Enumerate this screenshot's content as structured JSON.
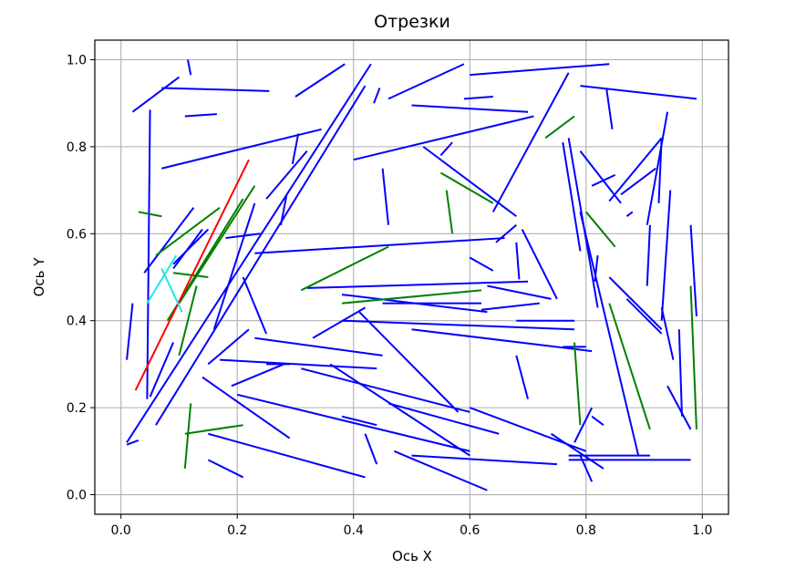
{
  "chart_data": {
    "type": "line",
    "title": "Отрезки",
    "xlabel": "Ось X",
    "ylabel": "Ось Y",
    "xlim": [
      -0.045,
      1.045
    ],
    "ylim": [
      -0.045,
      1.045
    ],
    "xticks": [
      "0.0",
      "0.2",
      "0.4",
      "0.6",
      "0.8",
      "1.0"
    ],
    "yticks": [
      "0.0",
      "0.2",
      "0.4",
      "0.6",
      "0.8",
      "1.0"
    ],
    "grid": true,
    "colors": {
      "blue": "#0000ff",
      "green": "#008000",
      "red": "#ff0000",
      "cyan": "#22e5e5"
    },
    "series": [
      {
        "color": "#0000ff",
        "segments": [
          [
            0.02,
            0.88,
            0.1,
            0.96
          ],
          [
            0.115,
            1.0,
            0.12,
            0.965
          ],
          [
            0.07,
            0.935,
            0.255,
            0.928
          ],
          [
            0.3,
            0.915,
            0.385,
            0.99
          ],
          [
            0.46,
            0.91,
            0.59,
            0.99
          ],
          [
            0.6,
            0.965,
            0.84,
            0.99
          ],
          [
            0.79,
            0.94,
            0.99,
            0.91
          ],
          [
            0.835,
            0.935,
            0.845,
            0.84
          ],
          [
            0.435,
            0.9,
            0.445,
            0.935
          ],
          [
            0.5,
            0.895,
            0.7,
            0.88
          ],
          [
            0.59,
            0.91,
            0.64,
            0.915
          ],
          [
            0.11,
            0.87,
            0.165,
            0.875
          ],
          [
            0.05,
            0.885,
            0.045,
            0.22
          ],
          [
            0.02,
            0.44,
            0.01,
            0.31
          ],
          [
            0.01,
            0.115,
            0.03,
            0.125
          ],
          [
            0.01,
            0.12,
            0.43,
            0.99
          ],
          [
            0.06,
            0.16,
            0.42,
            0.94
          ],
          [
            0.07,
            0.75,
            0.345,
            0.84
          ],
          [
            0.305,
            0.83,
            0.295,
            0.76
          ],
          [
            0.4,
            0.77,
            0.71,
            0.87
          ],
          [
            0.55,
            0.78,
            0.57,
            0.81
          ],
          [
            0.45,
            0.75,
            0.46,
            0.62
          ],
          [
            0.52,
            0.8,
            0.68,
            0.64
          ],
          [
            0.64,
            0.65,
            0.77,
            0.97
          ],
          [
            0.04,
            0.51,
            0.125,
            0.66
          ],
          [
            0.09,
            0.52,
            0.14,
            0.61
          ],
          [
            0.05,
            0.225,
            0.09,
            0.35
          ],
          [
            0.16,
            0.38,
            0.23,
            0.67
          ],
          [
            0.25,
            0.68,
            0.32,
            0.79
          ],
          [
            0.275,
            0.62,
            0.285,
            0.69
          ],
          [
            0.18,
            0.59,
            0.24,
            0.6
          ],
          [
            0.23,
            0.555,
            0.66,
            0.59
          ],
          [
            0.68,
            0.58,
            0.685,
            0.495
          ],
          [
            0.645,
            0.58,
            0.68,
            0.62
          ],
          [
            0.6,
            0.545,
            0.64,
            0.515
          ],
          [
            0.32,
            0.475,
            0.7,
            0.49
          ],
          [
            0.63,
            0.48,
            0.74,
            0.45
          ],
          [
            0.62,
            0.425,
            0.72,
            0.44
          ],
          [
            0.77,
            0.82,
            0.82,
            0.43
          ],
          [
            0.76,
            0.81,
            0.79,
            0.56
          ],
          [
            0.69,
            0.61,
            0.75,
            0.45
          ],
          [
            0.81,
            0.71,
            0.85,
            0.735
          ],
          [
            0.79,
            0.79,
            0.86,
            0.67
          ],
          [
            0.86,
            0.69,
            0.92,
            0.75
          ],
          [
            0.87,
            0.64,
            0.88,
            0.65
          ],
          [
            0.84,
            0.675,
            0.93,
            0.82
          ],
          [
            0.93,
            0.82,
            0.925,
            0.67
          ],
          [
            0.94,
            0.88,
            0.905,
            0.62
          ],
          [
            0.91,
            0.62,
            0.905,
            0.48
          ],
          [
            0.98,
            0.62,
            0.99,
            0.41
          ],
          [
            0.945,
            0.7,
            0.93,
            0.4
          ],
          [
            0.93,
            0.37,
            0.87,
            0.45
          ],
          [
            0.82,
            0.55,
            0.815,
            0.49
          ],
          [
            0.79,
            0.65,
            0.89,
            0.09
          ],
          [
            0.84,
            0.5,
            0.93,
            0.38
          ],
          [
            0.93,
            0.43,
            0.95,
            0.31
          ],
          [
            0.96,
            0.38,
            0.965,
            0.18
          ],
          [
            0.94,
            0.25,
            0.98,
            0.15
          ],
          [
            0.21,
            0.5,
            0.25,
            0.37
          ],
          [
            0.33,
            0.36,
            0.42,
            0.43
          ],
          [
            0.41,
            0.42,
            0.58,
            0.19
          ],
          [
            0.45,
            0.44,
            0.62,
            0.44
          ],
          [
            0.38,
            0.4,
            0.78,
            0.38
          ],
          [
            0.38,
            0.46,
            0.63,
            0.42
          ],
          [
            0.5,
            0.38,
            0.81,
            0.33
          ],
          [
            0.68,
            0.4,
            0.78,
            0.4
          ],
          [
            0.76,
            0.34,
            0.8,
            0.34
          ],
          [
            0.15,
            0.3,
            0.22,
            0.38
          ],
          [
            0.17,
            0.31,
            0.44,
            0.29
          ],
          [
            0.23,
            0.36,
            0.45,
            0.32
          ],
          [
            0.19,
            0.25,
            0.28,
            0.3
          ],
          [
            0.25,
            0.3,
            0.29,
            0.3
          ],
          [
            0.14,
            0.27,
            0.29,
            0.13
          ],
          [
            0.31,
            0.29,
            0.6,
            0.19
          ],
          [
            0.36,
            0.3,
            0.6,
            0.09
          ],
          [
            0.2,
            0.23,
            0.6,
            0.1
          ],
          [
            0.38,
            0.18,
            0.44,
            0.16
          ],
          [
            0.42,
            0.14,
            0.44,
            0.07
          ],
          [
            0.46,
            0.21,
            0.65,
            0.14
          ],
          [
            0.6,
            0.2,
            0.8,
            0.1
          ],
          [
            0.5,
            0.09,
            0.75,
            0.07
          ],
          [
            0.47,
            0.1,
            0.63,
            0.01
          ],
          [
            0.68,
            0.32,
            0.7,
            0.22
          ],
          [
            0.15,
            0.14,
            0.42,
            0.04
          ],
          [
            0.15,
            0.08,
            0.21,
            0.04
          ],
          [
            0.09,
            0.53,
            0.15,
            0.61
          ],
          [
            0.77,
            0.08,
            0.98,
            0.08
          ],
          [
            0.77,
            0.09,
            0.91,
            0.09
          ],
          [
            0.79,
            0.09,
            0.81,
            0.03
          ],
          [
            0.74,
            0.14,
            0.83,
            0.06
          ],
          [
            0.78,
            0.12,
            0.81,
            0.2
          ],
          [
            0.81,
            0.18,
            0.83,
            0.16
          ]
        ]
      },
      {
        "color": "#008000",
        "segments": [
          [
            0.08,
            0.4,
            0.21,
            0.68
          ],
          [
            0.09,
            0.51,
            0.15,
            0.5
          ],
          [
            0.06,
            0.55,
            0.17,
            0.66
          ],
          [
            0.1,
            0.44,
            0.23,
            0.71
          ],
          [
            0.1,
            0.32,
            0.13,
            0.48
          ],
          [
            0.03,
            0.65,
            0.07,
            0.64
          ],
          [
            0.11,
            0.14,
            0.21,
            0.16
          ],
          [
            0.11,
            0.06,
            0.12,
            0.21
          ],
          [
            0.31,
            0.47,
            0.46,
            0.57
          ],
          [
            0.38,
            0.44,
            0.62,
            0.47
          ],
          [
            0.55,
            0.74,
            0.64,
            0.67
          ],
          [
            0.56,
            0.7,
            0.57,
            0.6
          ],
          [
            0.73,
            0.82,
            0.78,
            0.87
          ],
          [
            0.8,
            0.65,
            0.85,
            0.57
          ],
          [
            0.84,
            0.44,
            0.91,
            0.15
          ],
          [
            0.98,
            0.48,
            0.99,
            0.15
          ],
          [
            0.78,
            0.35,
            0.79,
            0.16
          ]
        ]
      },
      {
        "color": "#ff0000",
        "segments": [
          [
            0.025,
            0.24,
            0.22,
            0.77
          ]
        ]
      },
      {
        "color": "#22e5e5",
        "segments": [
          [
            0.045,
            0.44,
            0.095,
            0.55
          ],
          [
            0.07,
            0.52,
            0.105,
            0.42
          ]
        ]
      }
    ]
  }
}
